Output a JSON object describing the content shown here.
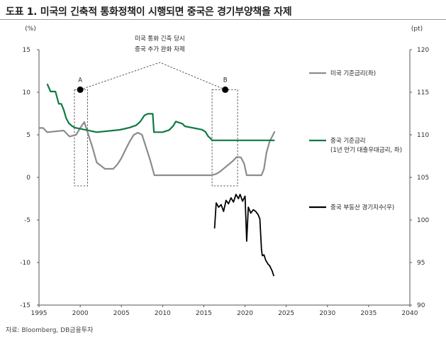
{
  "header": {
    "title": "도표 1. 미국의 긴축적 통화정책이 시행되면 중국은 경기부양책을 자제"
  },
  "source": "자료: Bloomberg, DB금융투자",
  "chart_data": {
    "type": "line",
    "left_unit": "(%)",
    "right_unit": "(pt)",
    "x_ticks": [
      1995,
      2000,
      2005,
      2010,
      2015,
      2020,
      2025,
      2030,
      2035,
      2040
    ],
    "xlim": [
      1995,
      2040
    ],
    "ylim_left": [
      -15,
      15
    ],
    "yticks_left": [
      15,
      10,
      5,
      0,
      -5,
      -10,
      -15
    ],
    "ylim_right": [
      90,
      120
    ],
    "yticks_right": [
      120,
      115,
      110,
      105,
      100,
      95,
      90
    ],
    "grid": false,
    "series": [
      {
        "name": "미국 기준금리(좌)",
        "axis": "left",
        "color": "#8c8c8c",
        "x": [
          1995.0,
          1995.5,
          1996.0,
          1997.0,
          1998.0,
          1998.7,
          1999.5,
          2000.0,
          2000.5,
          2001.0,
          2001.5,
          2002.0,
          2003.0,
          2004.0,
          2004.5,
          2005.0,
          2005.5,
          2006.0,
          2006.5,
          2007.0,
          2007.5,
          2008.0,
          2008.5,
          2009.0,
          2012.0,
          2015.9,
          2016.5,
          2017.0,
          2017.5,
          2018.0,
          2018.5,
          2019.0,
          2019.5,
          2019.9,
          2020.2,
          2021.0,
          2022.0,
          2022.3,
          2022.6,
          2023.0,
          2023.4,
          2023.6
        ],
        "values": [
          5.8,
          5.8,
          5.3,
          5.4,
          5.5,
          4.8,
          5.0,
          5.8,
          6.5,
          5.0,
          3.5,
          1.75,
          1.0,
          1.0,
          1.5,
          2.25,
          3.25,
          4.2,
          5.0,
          5.25,
          5.0,
          3.5,
          2.0,
          0.25,
          0.25,
          0.25,
          0.4,
          0.7,
          1.1,
          1.5,
          1.9,
          2.4,
          2.35,
          1.6,
          0.25,
          0.25,
          0.25,
          1.0,
          2.9,
          4.25,
          5.0,
          5.4
        ]
      },
      {
        "name": "중국 기준금리\n(1년 만기 대출우대금리, 좌)",
        "axis": "left",
        "color": "#0e7a43",
        "x": [
          1996.0,
          1996.4,
          1996.6,
          1997.0,
          1997.4,
          1997.7,
          1998.0,
          1998.3,
          1998.6,
          1998.9,
          1999.3,
          2002.0,
          2004.8,
          2006.0,
          2006.8,
          2007.3,
          2007.8,
          2008.2,
          2008.8,
          2008.95,
          2010.0,
          2010.8,
          2011.3,
          2011.6,
          2012.4,
          2012.7,
          2014.8,
          2015.2,
          2015.5,
          2015.8,
          2016.0,
          2023.6
        ],
        "values": [
          10.98,
          10.08,
          10.08,
          10.08,
          8.64,
          8.64,
          7.92,
          6.93,
          6.39,
          6.12,
          5.85,
          5.31,
          5.58,
          5.85,
          6.12,
          6.57,
          7.29,
          7.47,
          7.47,
          5.31,
          5.31,
          5.56,
          6.06,
          6.56,
          6.31,
          6.0,
          5.6,
          5.35,
          4.85,
          4.6,
          4.35,
          4.35
        ]
      },
      {
        "name": "중국 부동산 경기지수(우)",
        "axis": "right",
        "color": "#000000",
        "x": [
          2016.3,
          2016.5,
          2016.8,
          2017.1,
          2017.4,
          2017.7,
          2018.0,
          2018.3,
          2018.6,
          2018.9,
          2019.2,
          2019.4,
          2019.7,
          2020.0,
          2020.2,
          2020.4,
          2020.7,
          2021.0,
          2021.3,
          2021.6,
          2021.8,
          2022.0,
          2022.1,
          2022.3,
          2022.5,
          2022.8,
          2023.0,
          2023.3,
          2023.5
        ],
        "values": [
          99.0,
          102.0,
          101.5,
          101.8,
          101.0,
          102.3,
          101.9,
          102.6,
          102.1,
          103.0,
          102.5,
          103.0,
          102.2,
          102.8,
          97.5,
          101.5,
          100.8,
          101.2,
          101.0,
          100.6,
          100.1,
          96.5,
          95.8,
          95.9,
          95.3,
          94.8,
          94.6,
          94.0,
          93.4
        ]
      }
    ],
    "legend": [
      {
        "label": "미국 기준금리(좌)",
        "color": "#8c8c8c"
      },
      {
        "label": "중국 기준금리",
        "label2": "(1년 만기 대출우대금리, 좌)",
        "color": "#0e7a43"
      },
      {
        "label": "중국 부동산 경기지수(우)",
        "color": "#000000"
      }
    ],
    "annotation": {
      "line1": "미국 통화 긴축 당시",
      "line2": "중국 추가 완화 자제",
      "labels": [
        "A",
        "B"
      ],
      "markers": [
        {
          "label": "A",
          "x": 2000.0,
          "y": 10.3
        },
        {
          "label": "B",
          "x": 2017.6,
          "y": 10.3
        }
      ],
      "boxes": [
        {
          "label": "A",
          "x0": 1999.3,
          "x1": 2000.9,
          "y0": -1.0,
          "y1": 10.3
        },
        {
          "label": "B",
          "x0": 2016.0,
          "x1": 2019.1,
          "y0": -1.0,
          "y1": 10.3
        }
      ]
    }
  }
}
